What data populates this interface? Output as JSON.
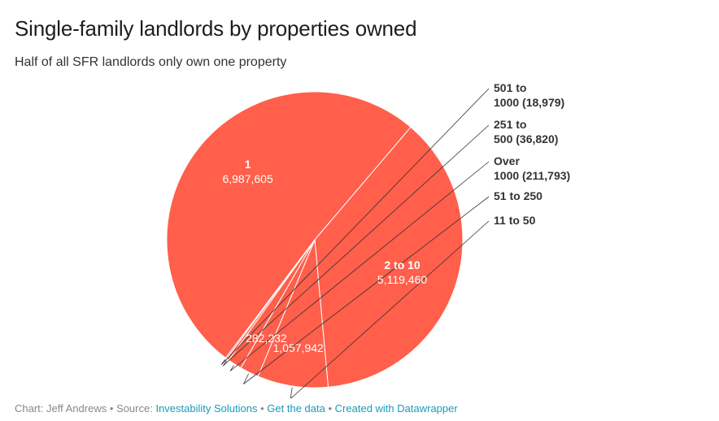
{
  "header": {
    "title": "Single-family landlords by properties owned",
    "subtitle": "Half of all SFR landlords only own one property"
  },
  "footer": {
    "chart_by": "Chart: Jeff Andrews",
    "source_prefix": "Source:",
    "source_link": "Investability Solutions",
    "get_data": "Get the data",
    "created_with": "Created with Datawrapper",
    "separator": "•"
  },
  "colors": {
    "slice": "#ff5f4b",
    "slice_edge": "#ffffff",
    "leader": "#333333",
    "link": "#1a9bb8"
  },
  "chart_data": {
    "type": "pie",
    "series": [
      {
        "category": "1",
        "value": 6987605,
        "value_label": "6,987,605",
        "label_style": "inside-stacked"
      },
      {
        "category": "2 to 10",
        "value": 5119460,
        "value_label": "5,119,460",
        "label_style": "inside-stacked"
      },
      {
        "category": "11 to 50",
        "value": 1057942,
        "value_label": "1,057,942",
        "label_style": "inside-value-outside-category"
      },
      {
        "category": "51 to 250",
        "value": 282232,
        "value_label": "282,232",
        "label_style": "inside-value-outside-category"
      },
      {
        "category": "Over 1000",
        "value": 211793,
        "value_label": "(211,793)",
        "label_style": "outside"
      },
      {
        "category": "251 to 500",
        "value": 36820,
        "value_label": "(36,820)",
        "label_style": "outside"
      },
      {
        "category": "501 to 1000",
        "value": 18979,
        "value_label": "(18,979)",
        "label_style": "outside"
      }
    ],
    "outside_label_lines": {
      "501 to 1000": [
        "501 to",
        "1000 (18,979)"
      ],
      "251 to 500": [
        "251 to",
        "500 (36,820)"
      ],
      "Over 1000": [
        "Over",
        "1000 (211,793)"
      ],
      "51 to 250": [
        "51 to 250"
      ],
      "11 to 50": [
        "11 to 50"
      ]
    }
  }
}
